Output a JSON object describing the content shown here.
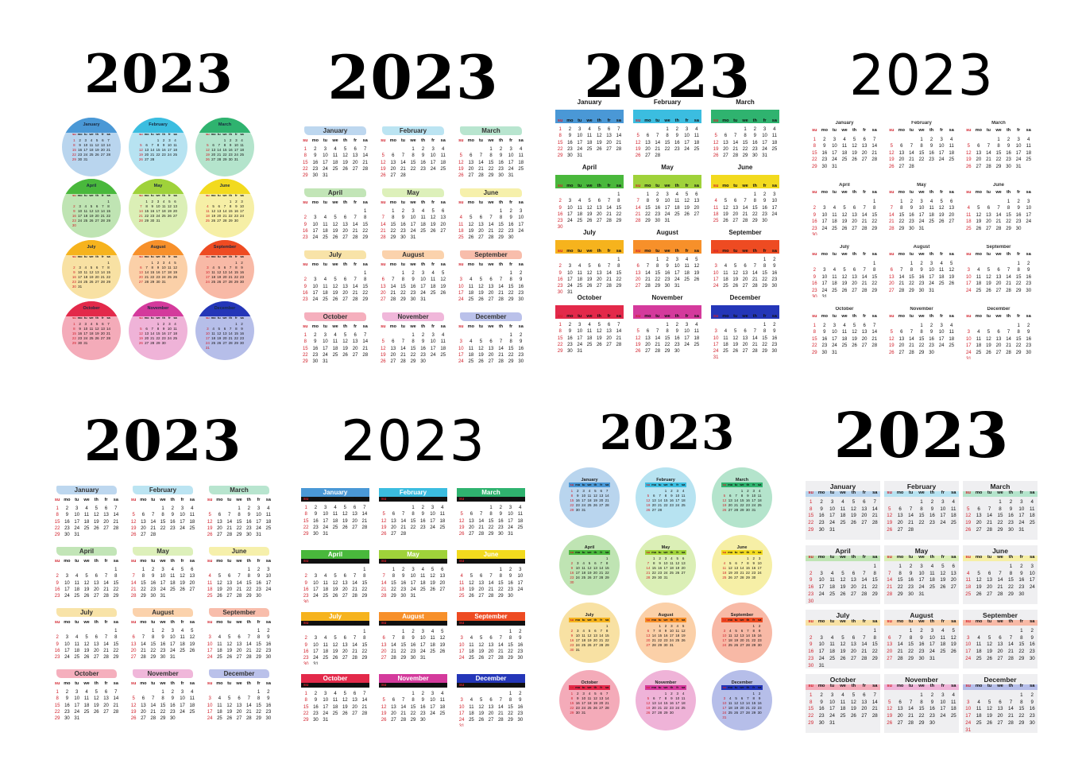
{
  "year": "2023",
  "month_names": [
    "January",
    "February",
    "March",
    "April",
    "May",
    "June",
    "July",
    "August",
    "September",
    "October",
    "November",
    "December"
  ],
  "weekdays": [
    "su",
    "mo",
    "tu",
    "we",
    "th",
    "fr",
    "sa"
  ],
  "month_colors": [
    "#4a98d6",
    "#3bbde0",
    "#2fb36f",
    "#49b83c",
    "#9fd23a",
    "#f2da1e",
    "#f6b31d",
    "#f7902a",
    "#ee4b22",
    "#e3294a",
    "#d43a9c",
    "#2436b8"
  ],
  "pastel_colors": [
    "#b9d5ee",
    "#b7e3f1",
    "#b4e4cc",
    "#bfe4b3",
    "#dbefb6",
    "#f6efa6",
    "#f8e1a3",
    "#fbd0a8",
    "#f8b9a6",
    "#f4abb9",
    "#efb3d8",
    "#b6bee9"
  ],
  "panels": [
    {
      "id": "circles-1"
    },
    {
      "id": "brush-1"
    },
    {
      "id": "bars-1"
    },
    {
      "id": "plain-1"
    },
    {
      "id": "brush-2"
    },
    {
      "id": "bars-2"
    },
    {
      "id": "circles-2"
    },
    {
      "id": "gray-1"
    }
  ]
}
